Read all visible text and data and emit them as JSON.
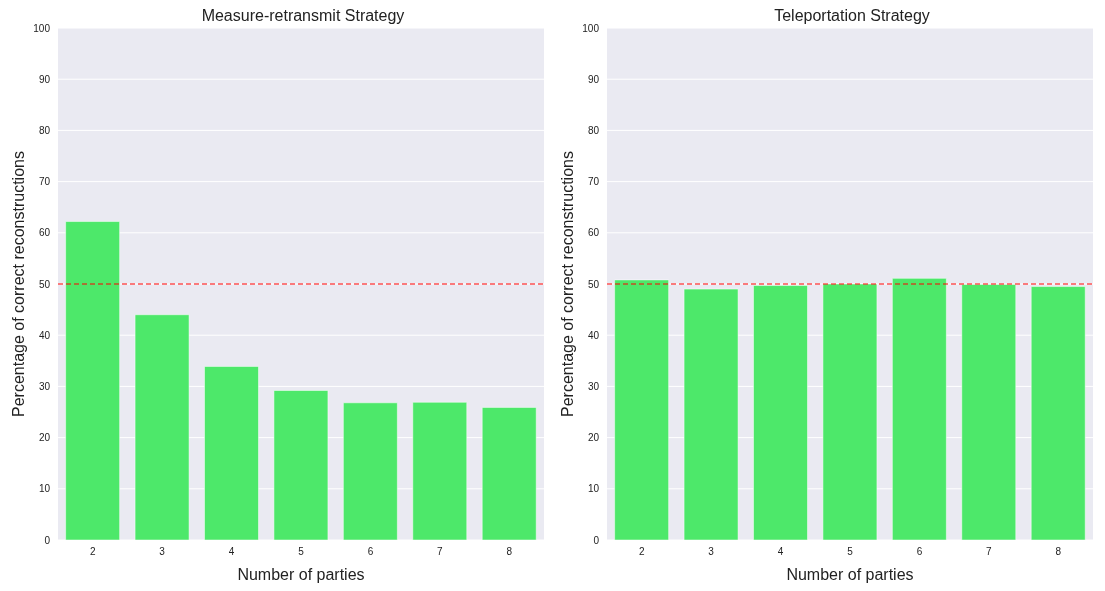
{
  "chart_data": [
    {
      "type": "bar",
      "title": "Measure-retransmit Strategy",
      "xlabel": "Number of parties",
      "ylabel": "Percentage of correct reconstructions",
      "categories": [
        "2",
        "3",
        "4",
        "5",
        "6",
        "7",
        "8"
      ],
      "values": [
        62.2,
        44.0,
        33.9,
        29.2,
        26.8,
        26.9,
        25.9
      ],
      "color": "#4de86a",
      "ylim": [
        0,
        100
      ],
      "yticks": [
        0,
        10,
        20,
        30,
        40,
        50,
        60,
        70,
        80,
        90,
        100
      ],
      "grid": "y",
      "ref_lines": [
        {
          "axis": "y",
          "value": 50,
          "color": "#ff0000",
          "line_style": "dashed"
        }
      ]
    },
    {
      "type": "bar",
      "title": "Teleportation Strategy",
      "xlabel": "Number of parties",
      "ylabel": "Percentage of correct reconstructions",
      "categories": [
        "2",
        "3",
        "4",
        "5",
        "6",
        "7",
        "8"
      ],
      "values": [
        50.8,
        49.0,
        49.7,
        50.0,
        51.1,
        49.9,
        49.5
      ],
      "color": "#4de86a",
      "ylim": [
        0,
        100
      ],
      "yticks": [
        0,
        10,
        20,
        30,
        40,
        50,
        60,
        70,
        80,
        90,
        100
      ],
      "grid": "y",
      "ref_lines": [
        {
          "axis": "y",
          "value": 50,
          "color": "#ff0000",
          "line_style": "dashed"
        }
      ]
    }
  ]
}
